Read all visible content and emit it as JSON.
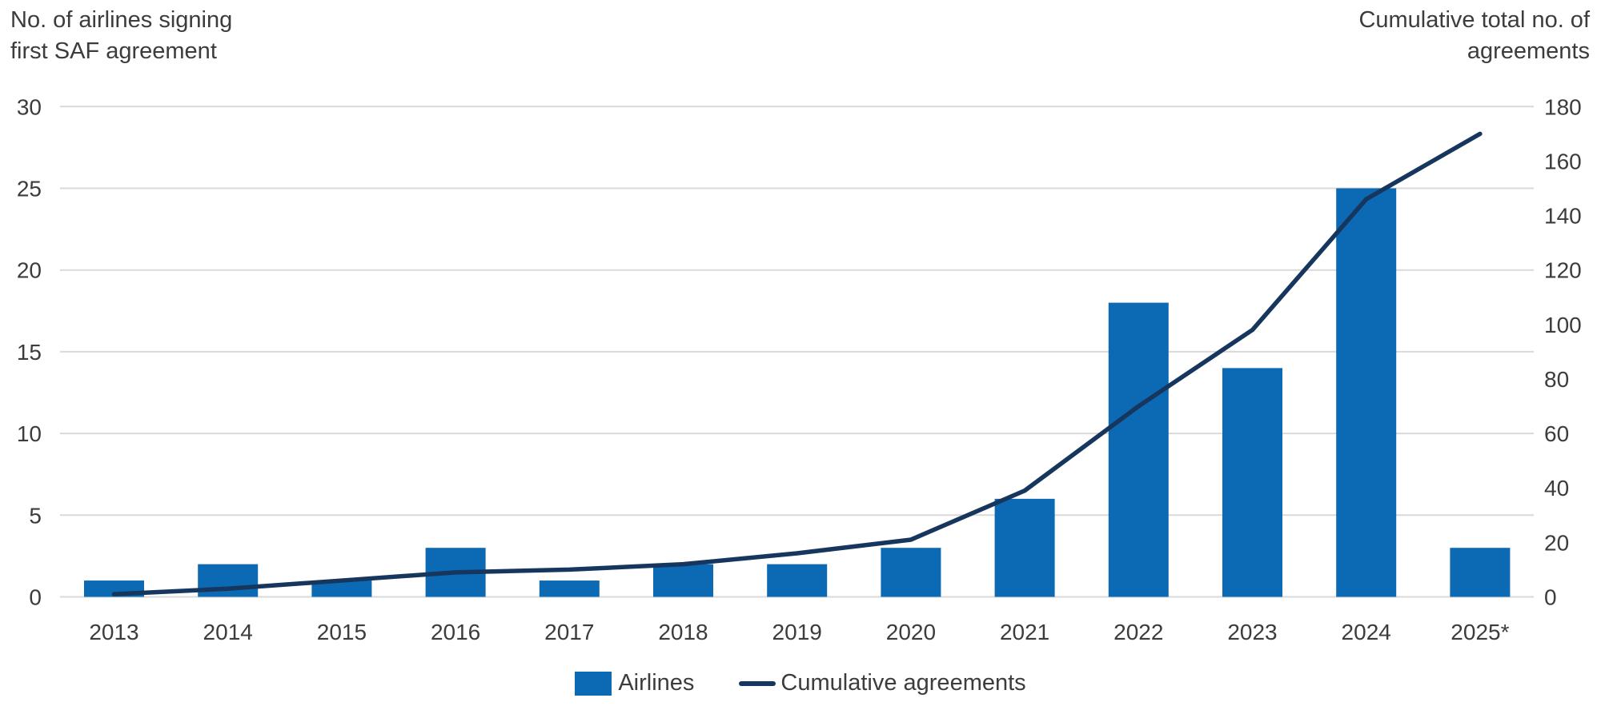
{
  "chart_data": {
    "type": "bar",
    "combo": "bar+line",
    "categories": [
      "2013",
      "2014",
      "2015",
      "2016",
      "2017",
      "2018",
      "2019",
      "2020",
      "2021",
      "2022",
      "2023",
      "2024",
      "2025*"
    ],
    "series": [
      {
        "name": "Airlines",
        "render": "bar",
        "axis": "left",
        "values": [
          1,
          2,
          1,
          3,
          1,
          2,
          2,
          3,
          6,
          18,
          14,
          25,
          3
        ]
      },
      {
        "name": "Cumulative agreements",
        "render": "line",
        "axis": "right",
        "values": [
          1,
          3,
          6,
          9,
          10,
          12,
          16,
          21,
          39,
          70,
          98,
          146,
          170
        ]
      }
    ],
    "left_axis": {
      "title": "No. of airlines signing\nfirst SAF agreement",
      "ticks": [
        0,
        5,
        10,
        15,
        20,
        25,
        30
      ],
      "range": [
        0,
        30
      ]
    },
    "right_axis": {
      "title": "Cumulative total no. of\nagreements",
      "ticks": [
        0,
        20,
        40,
        60,
        80,
        100,
        120,
        140,
        160,
        180
      ],
      "range": [
        0,
        180
      ]
    },
    "grid": "horizontal-on",
    "legend_position": "bottom-center"
  },
  "legend": [
    {
      "label": "Airlines",
      "swatch": "bar-square"
    },
    {
      "label": "Cumulative agreements",
      "swatch": "line-dash"
    }
  ],
  "colors": {
    "bar": "#0c69b4",
    "line": "#17365d",
    "grid": "#d9d9d9",
    "text": "#3c3c3c",
    "background": "#ffffff"
  }
}
